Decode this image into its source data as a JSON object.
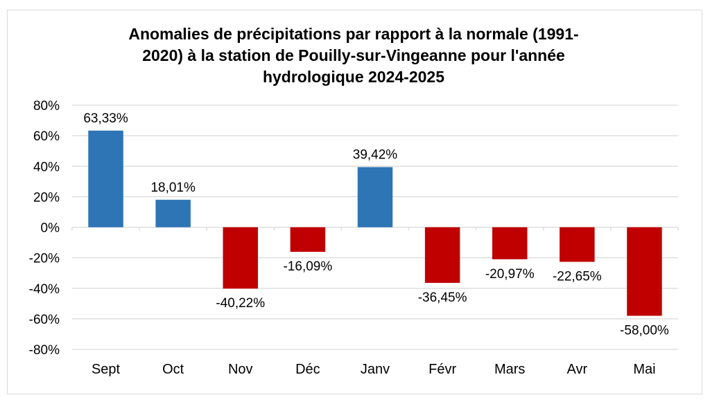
{
  "chart_data": {
    "type": "bar",
    "title_lines": [
      "Anomalies de précipitations par rapport à la normale (1991-",
      "2020) à la station de Pouilly-sur-Vingeanne pour l'année",
      "hydrologique 2024-2025"
    ],
    "categories": [
      "Sept",
      "Oct",
      "Nov",
      "Déc",
      "Janv",
      "Févr",
      "Mars",
      "Avr",
      "Mai"
    ],
    "values": [
      63.33,
      18.01,
      -40.22,
      -16.09,
      39.42,
      -36.45,
      -20.97,
      -22.65,
      -58.0
    ],
    "data_labels": [
      "63,33%",
      "18,01%",
      "-40,22%",
      "-16,09%",
      "39,42%",
      "-36,45%",
      "-20,97%",
      "-22,65%",
      "-58,00%"
    ],
    "ylim": [
      -80,
      80
    ],
    "yticks": [
      80,
      60,
      40,
      20,
      0,
      -20,
      -40,
      -60,
      -80
    ],
    "ytick_labels": [
      "80%",
      "60%",
      "40%",
      "20%",
      "0%",
      "-20%",
      "-40%",
      "-60%",
      "-80%"
    ],
    "xlabel": "",
    "ylabel": "",
    "grid": true,
    "legend": "none",
    "colors": {
      "positive": "#2e75b6",
      "negative": "#c00000",
      "grid": "#d9d9d9"
    }
  }
}
